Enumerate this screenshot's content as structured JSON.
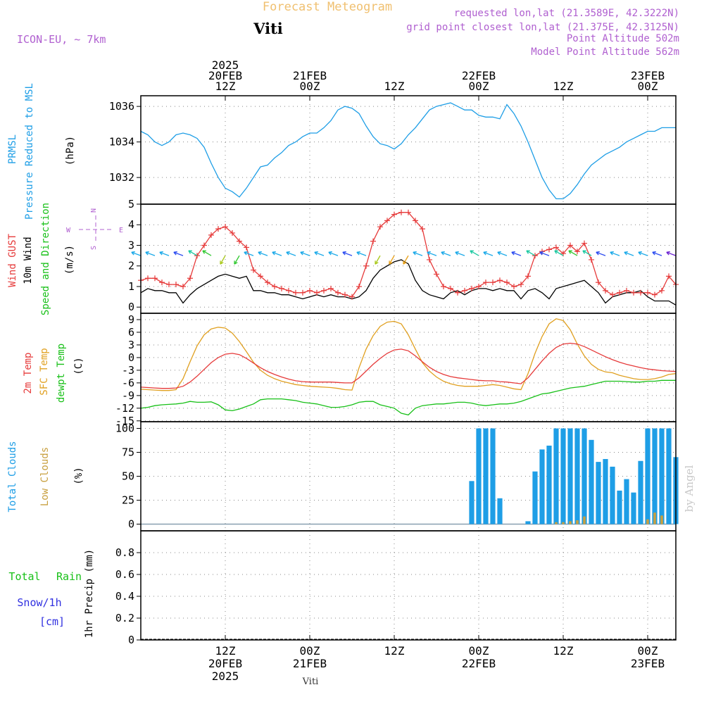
{
  "header": {
    "title": "Forecast Meteogram",
    "location": "Viti",
    "model": "ICON-EU, ~ 7km",
    "requested": "requested lon,lat (21.3589E, 42.3222N)",
    "grid_point": "grid point closest lon,lat (21.375E, 42.3125N)",
    "point_altitude": "Point Altitude 502m",
    "model_altitude": "Model Point Altitude 562m",
    "footer_location": "Viti",
    "watermark": "by Angel"
  },
  "colors": {
    "pressure": "#1e9ee6",
    "gust": "#e63a3a",
    "wind": "#000000",
    "temp2m": "#e63a3a",
    "sfc": "#e0a020",
    "dewpt": "#18c018",
    "total_cloud": "#1e9ee6",
    "low_cloud": "#c8a040",
    "rain": "#18c018",
    "snow": "#3030e0",
    "label_purple": "#b060d0",
    "title_orange": "#f0c070"
  },
  "time_axis": {
    "top_labels": [
      {
        "t": 12,
        "lines": [
          "2025",
          "20FEB",
          "12Z"
        ]
      },
      {
        "t": 24,
        "lines": [
          "21FEB",
          "00Z"
        ]
      },
      {
        "t": 36,
        "lines": [
          "12Z"
        ]
      },
      {
        "t": 48,
        "lines": [
          "22FEB",
          "00Z"
        ]
      },
      {
        "t": 60,
        "lines": [
          "12Z"
        ]
      },
      {
        "t": 72,
        "lines": [
          "23FEB",
          "00Z"
        ]
      }
    ],
    "bottom_labels": [
      {
        "t": 12,
        "lines": [
          "12Z",
          "20FEB",
          "2025"
        ]
      },
      {
        "t": 24,
        "lines": [
          "00Z",
          "21FEB"
        ]
      },
      {
        "t": 36,
        "lines": [
          "12Z"
        ]
      },
      {
        "t": 48,
        "lines": [
          "00Z",
          "22FEB"
        ]
      },
      {
        "t": 60,
        "lines": [
          "12Z"
        ]
      },
      {
        "t": 72,
        "lines": [
          "00Z",
          "23FEB"
        ]
      }
    ]
  },
  "chart_data": [
    {
      "id": "pressure",
      "type": "line",
      "title": "PRMSL Pressure Reduced to MSL",
      "labels": [
        "PRMSL",
        "Pressure Reduced to MSL"
      ],
      "ylabel": "(hPa)",
      "ylim": [
        1030.5,
        1036.6
      ],
      "yticks": [
        1032,
        1034,
        1036
      ],
      "x": [
        0,
        1,
        2,
        3,
        4,
        5,
        6,
        7,
        8,
        9,
        10,
        11,
        12,
        13,
        14,
        15,
        16,
        17,
        18,
        19,
        20,
        21,
        22,
        23,
        24,
        25,
        26,
        27,
        28,
        29,
        30,
        31,
        32,
        33,
        34,
        35,
        36,
        37,
        38,
        39,
        40,
        41,
        42,
        43,
        44,
        45,
        46,
        47,
        48,
        49,
        50,
        51,
        52,
        53,
        54,
        55,
        56,
        57,
        58,
        59,
        60,
        61,
        62,
        63,
        64,
        65,
        66,
        67,
        68,
        69,
        70,
        71,
        72,
        73,
        74,
        75,
        76
      ],
      "series": [
        {
          "name": "PRMSL",
          "values": [
            1034.6,
            1034.4,
            1034.0,
            1033.8,
            1034.0,
            1034.4,
            1034.5,
            1034.4,
            1034.2,
            1033.7,
            1032.8,
            1032.0,
            1031.4,
            1031.2,
            1030.9,
            1031.4,
            1032.0,
            1032.6,
            1032.7,
            1033.1,
            1033.4,
            1033.8,
            1034.0,
            1034.3,
            1034.5,
            1034.5,
            1034.8,
            1035.2,
            1035.8,
            1036.0,
            1035.9,
            1035.6,
            1034.9,
            1034.3,
            1033.9,
            1033.8,
            1033.6,
            1033.9,
            1034.4,
            1034.8,
            1035.3,
            1035.8,
            1036.0,
            1036.1,
            1036.2,
            1036.0,
            1035.8,
            1035.8,
            1035.5,
            1035.4,
            1035.4,
            1035.3,
            1036.1,
            1035.6,
            1034.9,
            1034.0,
            1033.0,
            1032.0,
            1031.3,
            1030.8,
            1030.8,
            1031.1,
            1031.6,
            1032.2,
            1032.7,
            1033.0,
            1033.3,
            1033.5,
            1033.7,
            1034.0,
            1034.2,
            1034.4,
            1034.6,
            1034.6,
            1034.8,
            1034.8,
            1034.8
          ]
        }
      ]
    },
    {
      "id": "wind",
      "type": "line",
      "title": "Wind GUST / 10m Wind Speed and Direction",
      "labels": [
        "Wind GUST",
        "10m Wind",
        "Speed and Direction"
      ],
      "ylabel": "(m/s)",
      "ylim": [
        -0.3,
        5
      ],
      "yticks": [
        0,
        1,
        2,
        3,
        4,
        5
      ],
      "compass": {
        "n": "N",
        "s": "S",
        "e": "E",
        "w": "W"
      },
      "x": [
        0,
        1,
        2,
        3,
        4,
        5,
        6,
        7,
        8,
        9,
        10,
        11,
        12,
        13,
        14,
        15,
        16,
        17,
        18,
        19,
        20,
        21,
        22,
        23,
        24,
        25,
        26,
        27,
        28,
        29,
        30,
        31,
        32,
        33,
        34,
        35,
        36,
        37,
        38,
        39,
        40,
        41,
        42,
        43,
        44,
        45,
        46,
        47,
        48,
        49,
        50,
        51,
        52,
        53,
        54,
        55,
        56,
        57,
        58,
        59,
        60,
        61,
        62,
        63,
        64,
        65,
        66,
        67,
        68,
        69,
        70,
        71,
        72,
        73,
        74,
        75,
        76
      ],
      "series": [
        {
          "name": "Wind GUST",
          "values": [
            1.3,
            1.4,
            1.4,
            1.2,
            1.1,
            1.1,
            1.0,
            1.4,
            2.5,
            3.0,
            3.5,
            3.8,
            3.9,
            3.6,
            3.2,
            2.9,
            1.8,
            1.5,
            1.2,
            1.0,
            0.9,
            0.8,
            0.7,
            0.7,
            0.8,
            0.7,
            0.8,
            0.9,
            0.7,
            0.6,
            0.5,
            1.0,
            2.0,
            3.2,
            3.9,
            4.2,
            4.5,
            4.6,
            4.6,
            4.2,
            3.8,
            2.3,
            1.6,
            1.0,
            0.9,
            0.7,
            0.8,
            0.9,
            1.0,
            1.2,
            1.2,
            1.3,
            1.2,
            1.0,
            1.1,
            1.5,
            2.5,
            2.7,
            2.8,
            2.9,
            2.6,
            3.0,
            2.7,
            3.1,
            2.3,
            1.2,
            0.8,
            0.6,
            0.7,
            0.8,
            0.7,
            0.7,
            0.7,
            0.6,
            0.8,
            1.5,
            1.1
          ]
        },
        {
          "name": "10m Wind",
          "values": [
            0.7,
            0.9,
            0.8,
            0.8,
            0.7,
            0.7,
            0.2,
            0.6,
            0.9,
            1.1,
            1.3,
            1.5,
            1.6,
            1.5,
            1.4,
            1.5,
            0.8,
            0.8,
            0.7,
            0.7,
            0.6,
            0.6,
            0.5,
            0.4,
            0.5,
            0.6,
            0.5,
            0.6,
            0.5,
            0.5,
            0.4,
            0.5,
            0.8,
            1.4,
            1.8,
            2.0,
            2.2,
            2.3,
            2.1,
            1.3,
            0.8,
            0.6,
            0.5,
            0.4,
            0.7,
            0.8,
            0.6,
            0.8,
            0.9,
            0.9,
            0.8,
            0.9,
            0.8,
            0.8,
            0.4,
            0.8,
            0.9,
            0.7,
            0.4,
            0.9,
            1.0,
            1.1,
            1.2,
            1.3,
            1.0,
            0.7,
            0.2,
            0.5,
            0.6,
            0.7,
            0.7,
            0.8,
            0.5,
            0.3,
            0.3,
            0.3,
            0.1
          ]
        }
      ]
    },
    {
      "id": "temperature",
      "type": "line",
      "title": "2m Temp / SFC Temp / dewpt Temp",
      "labels": [
        "2m Temp",
        "SFC Temp",
        "dewpt Temp"
      ],
      "ylabel": "(C)",
      "ylim": [
        -15.2,
        10.5
      ],
      "yticks": [
        -15,
        -12,
        -9,
        -6,
        -3,
        0,
        3,
        6,
        9
      ],
      "x": [
        0,
        1,
        2,
        3,
        4,
        5,
        6,
        7,
        8,
        9,
        10,
        11,
        12,
        13,
        14,
        15,
        16,
        17,
        18,
        19,
        20,
        21,
        22,
        23,
        24,
        25,
        26,
        27,
        28,
        29,
        30,
        31,
        32,
        33,
        34,
        35,
        36,
        37,
        38,
        39,
        40,
        41,
        42,
        43,
        44,
        45,
        46,
        47,
        48,
        49,
        50,
        51,
        52,
        53,
        54,
        55,
        56,
        57,
        58,
        59,
        60,
        61,
        62,
        63,
        64,
        65,
        66,
        67,
        68,
        69,
        70,
        71,
        72,
        73,
        74,
        75,
        76
      ],
      "series": [
        {
          "name": "2m Temp",
          "values": [
            -7.0,
            -7.1,
            -7.2,
            -7.3,
            -7.3,
            -7.2,
            -6.8,
            -5.8,
            -4.4,
            -2.8,
            -1.2,
            0.0,
            0.8,
            1.0,
            0.7,
            -0.2,
            -1.3,
            -2.4,
            -3.3,
            -4.0,
            -4.6,
            -5.1,
            -5.5,
            -5.7,
            -5.8,
            -5.8,
            -5.8,
            -5.8,
            -5.9,
            -6.0,
            -6.0,
            -4.8,
            -3.2,
            -1.6,
            -0.2,
            1.0,
            1.8,
            2.0,
            1.6,
            0.4,
            -1.0,
            -2.3,
            -3.3,
            -4.0,
            -4.5,
            -4.8,
            -5.0,
            -5.2,
            -5.4,
            -5.5,
            -5.5,
            -5.7,
            -5.8,
            -6.0,
            -6.2,
            -4.8,
            -2.8,
            -0.8,
            1.0,
            2.4,
            3.2,
            3.4,
            3.2,
            2.6,
            1.8,
            1.0,
            0.2,
            -0.5,
            -1.1,
            -1.6,
            -2.0,
            -2.4,
            -2.7,
            -2.9,
            -3.1,
            -3.2,
            -3.3
          ]
        },
        {
          "name": "SFC Temp",
          "values": [
            -7.5,
            -7.6,
            -7.7,
            -7.8,
            -7.8,
            -7.6,
            -5.0,
            -1.0,
            2.8,
            5.4,
            6.8,
            7.2,
            7.0,
            5.8,
            3.8,
            1.4,
            -1.1,
            -3.0,
            -4.2,
            -5.0,
            -5.6,
            -6.0,
            -6.4,
            -6.6,
            -6.8,
            -6.9,
            -7.0,
            -7.1,
            -7.3,
            -7.6,
            -7.7,
            -2.4,
            2.0,
            5.2,
            7.4,
            8.4,
            8.6,
            8.0,
            5.4,
            2.0,
            -1.2,
            -3.2,
            -4.6,
            -5.6,
            -6.2,
            -6.6,
            -6.8,
            -6.8,
            -6.8,
            -6.6,
            -6.4,
            -6.6,
            -7.0,
            -7.4,
            -7.6,
            -3.8,
            1.0,
            5.0,
            8.0,
            9.2,
            8.8,
            6.6,
            3.2,
            0.4,
            -1.6,
            -2.8,
            -3.4,
            -3.6,
            -4.2,
            -4.6,
            -5.0,
            -5.2,
            -5.2,
            -5.0,
            -4.6,
            -4.0,
            -3.8
          ]
        },
        {
          "name": "dewpt Temp",
          "values": [
            -12.0,
            -11.8,
            -11.4,
            -11.2,
            -11.1,
            -11.0,
            -10.8,
            -10.4,
            -10.6,
            -10.6,
            -10.5,
            -11.2,
            -12.4,
            -12.6,
            -12.2,
            -11.6,
            -11.0,
            -10.0,
            -9.8,
            -9.8,
            -9.8,
            -10.0,
            -10.2,
            -10.6,
            -10.8,
            -11.0,
            -11.4,
            -11.8,
            -11.8,
            -11.6,
            -11.2,
            -10.6,
            -10.4,
            -10.4,
            -11.2,
            -11.6,
            -12.0,
            -13.2,
            -13.6,
            -12.0,
            -11.4,
            -11.2,
            -11.0,
            -11.0,
            -10.8,
            -10.6,
            -10.6,
            -10.8,
            -11.2,
            -11.4,
            -11.2,
            -11.0,
            -11.0,
            -10.8,
            -10.4,
            -9.8,
            -9.2,
            -8.6,
            -8.4,
            -8.0,
            -7.6,
            -7.2,
            -7.0,
            -6.8,
            -6.4,
            -6.0,
            -5.6,
            -5.6,
            -5.6,
            -5.7,
            -5.8,
            -5.8,
            -5.6,
            -5.6,
            -5.4,
            -5.4,
            -5.4
          ]
        }
      ]
    },
    {
      "id": "clouds",
      "type": "bar",
      "title": "Total Clouds / Low Clouds",
      "labels": [
        "Total Clouds",
        "Low Clouds"
      ],
      "ylabel": "(%)",
      "ylim": [
        -7,
        107
      ],
      "yticks": [
        0,
        25,
        50,
        75,
        100
      ],
      "x": [
        47,
        48,
        49,
        50,
        51,
        52,
        53,
        54,
        55,
        56,
        57,
        58,
        59,
        60,
        61,
        62,
        63,
        64,
        65,
        66,
        67,
        68,
        69,
        70,
        71,
        72,
        73,
        74,
        75,
        76
      ],
      "series": [
        {
          "name": "Total Clouds",
          "values": [
            45,
            100,
            100,
            100,
            27,
            0,
            0,
            0,
            3,
            55,
            78,
            82,
            100,
            100,
            100,
            100,
            100,
            88,
            65,
            68,
            60,
            35,
            47,
            33,
            66,
            100,
            100,
            100,
            100,
            70
          ]
        },
        {
          "name": "Low Clouds",
          "values": [
            0,
            0,
            0,
            0,
            0,
            0,
            0,
            0,
            0,
            0,
            0,
            0,
            2,
            2,
            3,
            4,
            8,
            0,
            0,
            0,
            0,
            0,
            0,
            0,
            0,
            5,
            12,
            9,
            0,
            0
          ]
        }
      ]
    },
    {
      "id": "precip",
      "type": "bar",
      "title": "1hr Precip",
      "labels": [
        "Total",
        "Rain",
        "Snow/1h",
        "[cm]"
      ],
      "ylabel": "1hr Precip (mm)",
      "ylim": [
        0,
        1.0
      ],
      "yticks": [
        "0",
        "0.2",
        "0.4",
        "0.6",
        "0.8"
      ],
      "x": [],
      "series": [
        {
          "name": "Total Rain",
          "values": []
        },
        {
          "name": "Snow/1h",
          "values": []
        }
      ]
    }
  ]
}
